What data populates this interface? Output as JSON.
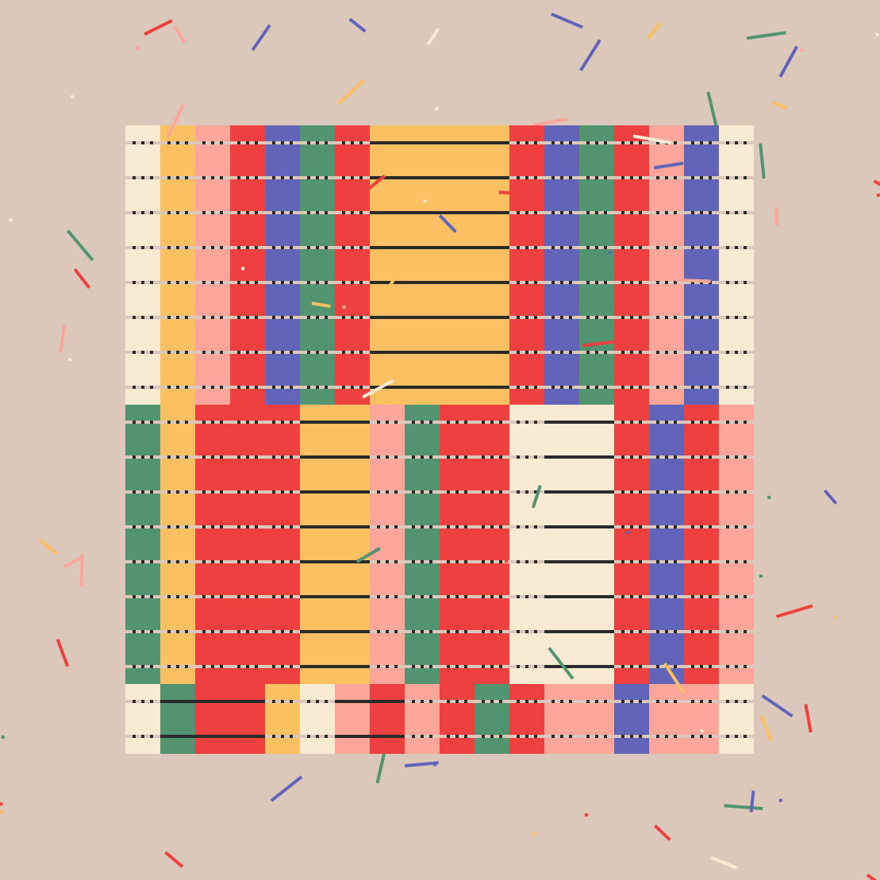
{
  "palette": {
    "background": "#dcc8ba",
    "cream": "#f9ebd3",
    "yellow": "#fbc062",
    "pink": "#fca59a",
    "red": "#ef4040",
    "blue": "#6264b9",
    "green": "#529370",
    "dark": "#2a2a2a",
    "band": "#dcc8ba"
  },
  "sections": [
    {
      "rows": 8,
      "columns": [
        "cream",
        "yellow",
        "pink",
        "red",
        "blue",
        "green",
        "red",
        "yellow",
        "yellow",
        "yellow",
        "yellow",
        "red",
        "blue",
        "green",
        "red",
        "pink",
        "blue",
        "cream"
      ],
      "line_styles": [
        "dot",
        "dot",
        "dot",
        "dot",
        "dot",
        "dot",
        "dot",
        "solid",
        "solid",
        "solid",
        "solid",
        "dot",
        "dot",
        "dot",
        "dot",
        "dot",
        "dot",
        "dot"
      ]
    },
    {
      "rows": 8,
      "columns": [
        "green",
        "yellow",
        "red",
        "red",
        "red",
        "yellow",
        "yellow",
        "pink",
        "green",
        "red",
        "red",
        "cream",
        "cream",
        "cream",
        "red",
        "blue",
        "red",
        "pink"
      ],
      "line_styles": [
        "dot",
        "dot",
        "dot",
        "dot",
        "dot",
        "solid",
        "solid",
        "dot",
        "dot",
        "dot",
        "dot",
        "dot",
        "solid",
        "solid",
        "dot",
        "dot",
        "dot",
        "dot"
      ]
    },
    {
      "rows": 2,
      "columns": [
        "cream",
        "green",
        "red",
        "red",
        "yellow",
        "cream",
        "pink",
        "red",
        "pink",
        "red",
        "green",
        "red",
        "pink",
        "pink",
        "blue",
        "pink",
        "pink",
        "cream"
      ],
      "line_styles": [
        "dot",
        "solid",
        "solid",
        "solid",
        "dot",
        "dot",
        "solid",
        "solid",
        "dot",
        "dot",
        "dot",
        "dot",
        "dot",
        "dot",
        "dot",
        "dot",
        "dot",
        "dot"
      ]
    }
  ]
}
